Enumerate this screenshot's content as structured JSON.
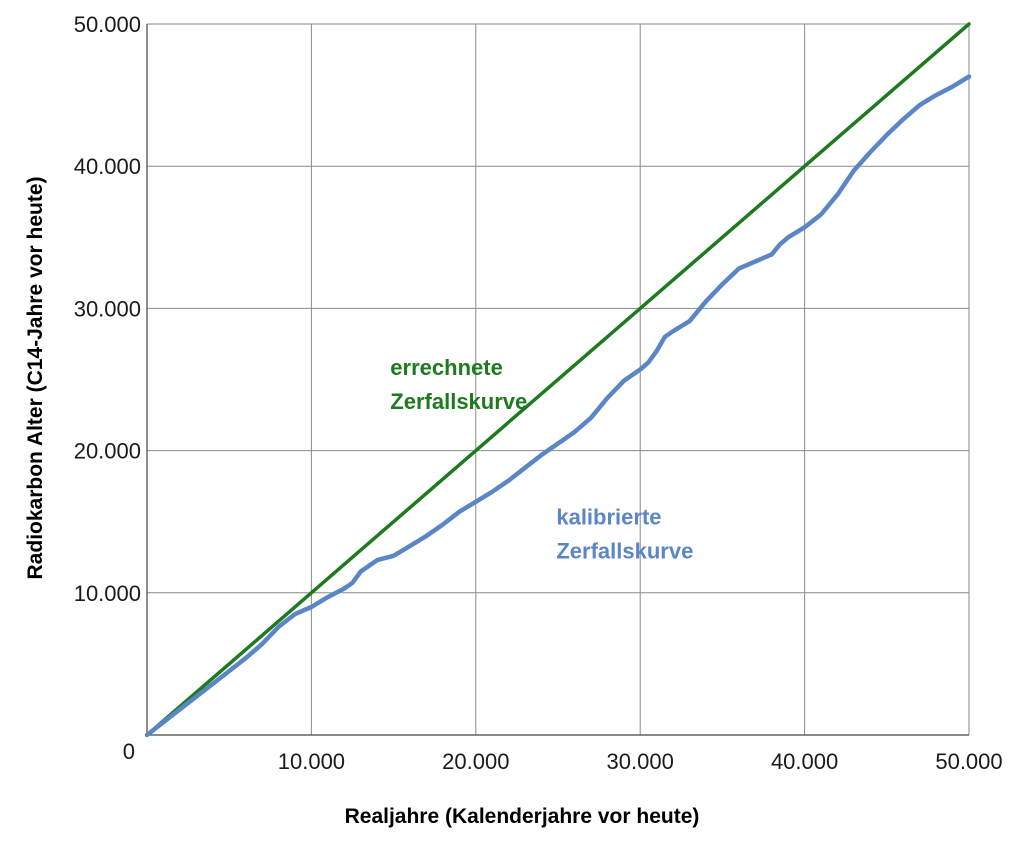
{
  "chart_data": {
    "type": "line",
    "title": "",
    "xlabel": "Realjahre (Kalenderjahre vor heute)",
    "ylabel": "Radiokarbon Alter (C14-Jahre vor heute)",
    "xlim": [
      0,
      50000
    ],
    "ylim": [
      0,
      50000
    ],
    "x_ticks": [
      {
        "value": 0,
        "label": ""
      },
      {
        "value": 10000,
        "label": "10.000"
      },
      {
        "value": 20000,
        "label": "20.000"
      },
      {
        "value": 30000,
        "label": "30.000"
      },
      {
        "value": 40000,
        "label": "40.000"
      },
      {
        "value": 50000,
        "label": "50.000"
      }
    ],
    "y_ticks": [
      {
        "value": 0,
        "label": "0"
      },
      {
        "value": 10000,
        "label": "10.000"
      },
      {
        "value": 20000,
        "label": "20.000"
      },
      {
        "value": 30000,
        "label": "30.000"
      },
      {
        "value": 40000,
        "label": "40.000"
      },
      {
        "value": 50000,
        "label": "50.000"
      }
    ],
    "grid": true,
    "series": [
      {
        "name": "errechnete Zerfallskurve",
        "color": "#1e7a1e",
        "x": [
          0,
          50000
        ],
        "y": [
          0,
          50000
        ]
      },
      {
        "name": "kalibrierte Zerfallskurve",
        "color": "#5b86c5",
        "x": [
          0,
          1000,
          2000,
          3000,
          4000,
          5000,
          6000,
          7000,
          8000,
          9000,
          10000,
          11000,
          12000,
          12500,
          13000,
          14000,
          15000,
          16000,
          17000,
          18000,
          19000,
          20000,
          21000,
          22000,
          23000,
          24000,
          25000,
          26000,
          27000,
          28000,
          29000,
          30000,
          30500,
          31000,
          31500,
          32000,
          33000,
          34000,
          35000,
          36000,
          37000,
          38000,
          38500,
          39000,
          40000,
          41000,
          42000,
          43000,
          44000,
          45000,
          46000,
          47000,
          48000,
          49000,
          50000
        ],
        "y": [
          0,
          900,
          1800,
          2700,
          3600,
          4500,
          5400,
          6400,
          7600,
          8500,
          9000,
          9700,
          10300,
          10700,
          11500,
          12300,
          12600,
          13300,
          14000,
          14800,
          15700,
          16400,
          17100,
          17900,
          18800,
          19700,
          20500,
          21300,
          22300,
          23700,
          24900,
          25700,
          26200,
          27000,
          28000,
          28400,
          29100,
          30500,
          31700,
          32800,
          33300,
          33800,
          34500,
          35000,
          35700,
          36600,
          38000,
          39700,
          41000,
          42200,
          43300,
          44300,
          45000,
          45600,
          46300
        ]
      }
    ],
    "annotations": [
      {
        "lines": [
          "errechnete",
          "Zerfallskurve"
        ],
        "color": "#1e7a1e",
        "x": 14800,
        "y": 25300
      },
      {
        "lines": [
          "kalibrierte",
          "Zerfallskurve"
        ],
        "color": "#5b86c5",
        "x": 24900,
        "y": 14800
      }
    ]
  }
}
